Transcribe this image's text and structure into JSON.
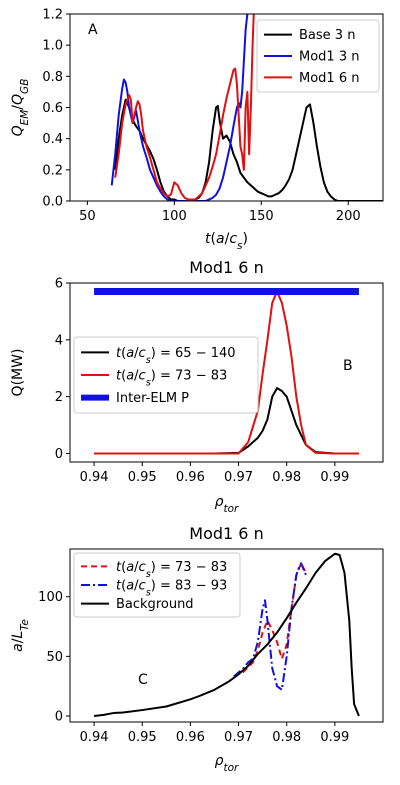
{
  "chart_data": [
    {
      "id": "A",
      "type": "line",
      "title": "",
      "panel_label": "A",
      "xlabel": "t(a/c_s)",
      "ylabel": "Q_EM/Q_GB",
      "xlim": [
        40,
        220
      ],
      "ylim": [
        0,
        1.2
      ],
      "xticks": [
        50,
        100,
        150,
        200
      ],
      "yticks": [
        0.0,
        0.2,
        0.4,
        0.6,
        0.8,
        1.0,
        1.2
      ],
      "xtick_labels": [
        "50",
        "100",
        "150",
        "200"
      ],
      "ytick_labels": [
        "0.0",
        "0.2",
        "0.4",
        "0.6",
        "0.8",
        "1.0",
        "1.2"
      ],
      "legend_position": "top-right",
      "series": [
        {
          "name": "Base 3 n",
          "color": "#000000",
          "style": "solid",
          "x": [
            66,
            68,
            70,
            72,
            74,
            76,
            78,
            80,
            82,
            84,
            86,
            88,
            90,
            92,
            94,
            96,
            98,
            100,
            102,
            104,
            106,
            108,
            110,
            112,
            114,
            116,
            118,
            120,
            122,
            124,
            125,
            126,
            128,
            130,
            132,
            134,
            136,
            138,
            140,
            142,
            144,
            146,
            148,
            150,
            152,
            154,
            156,
            158,
            160,
            162,
            164,
            166,
            168,
            170,
            172,
            174,
            176,
            178,
            180,
            182,
            184,
            186,
            188,
            190,
            192,
            194,
            196,
            198,
            200,
            205,
            210,
            220
          ],
          "y": [
            0.2,
            0.4,
            0.55,
            0.65,
            0.6,
            0.52,
            0.48,
            0.45,
            0.4,
            0.36,
            0.32,
            0.27,
            0.2,
            0.12,
            0.06,
            0.03,
            0.01,
            0.01,
            0.0,
            0.0,
            0.0,
            0.0,
            0.01,
            0.01,
            0.02,
            0.05,
            0.12,
            0.25,
            0.45,
            0.6,
            0.61,
            0.52,
            0.4,
            0.42,
            0.38,
            0.3,
            0.25,
            0.18,
            0.15,
            0.12,
            0.1,
            0.08,
            0.06,
            0.05,
            0.04,
            0.03,
            0.03,
            0.04,
            0.05,
            0.07,
            0.1,
            0.14,
            0.2,
            0.3,
            0.4,
            0.5,
            0.6,
            0.62,
            0.5,
            0.35,
            0.22,
            0.12,
            0.06,
            0.03,
            0.01,
            0.0,
            0.0,
            0.0,
            0.0,
            0.0,
            0.0,
            0.0
          ]
        },
        {
          "name": "Mod1 3 n",
          "color": "#1010e0",
          "style": "solid",
          "x": [
            64,
            66,
            68,
            70,
            71,
            72,
            73,
            74,
            75,
            76,
            78,
            80,
            82,
            84,
            86,
            88,
            90,
            92,
            94,
            96,
            98,
            100,
            110,
            114,
            118,
            120,
            122,
            124,
            126,
            128,
            130,
            132,
            134,
            136,
            137,
            138,
            139,
            140,
            141,
            142,
            143
          ],
          "y": [
            0.1,
            0.3,
            0.55,
            0.72,
            0.78,
            0.76,
            0.7,
            0.6,
            0.55,
            0.5,
            0.58,
            0.45,
            0.35,
            0.28,
            0.2,
            0.15,
            0.1,
            0.06,
            0.03,
            0.01,
            0.0,
            0.0,
            0.0,
            0.0,
            0.0,
            0.01,
            0.02,
            0.04,
            0.08,
            0.15,
            0.25,
            0.35,
            0.48,
            0.6,
            0.63,
            0.6,
            0.7,
            0.9,
            1.1,
            1.2,
            1.3
          ]
        },
        {
          "name": "Mod1 6 n",
          "color": "#e01010",
          "style": "solid",
          "x": [
            66,
            68,
            70,
            72,
            74,
            75,
            76,
            77,
            78,
            79,
            80,
            81,
            82,
            84,
            86,
            88,
            90,
            92,
            94,
            96,
            98,
            100,
            102,
            104,
            106,
            108,
            110,
            112,
            114,
            116,
            118,
            120,
            122,
            124,
            126,
            128,
            130,
            132,
            134,
            135,
            136,
            137,
            138,
            139,
            140,
            141,
            142,
            143,
            144,
            145,
            146
          ],
          "y": [
            0.15,
            0.3,
            0.5,
            0.62,
            0.68,
            0.65,
            0.5,
            0.55,
            0.6,
            0.64,
            0.62,
            0.55,
            0.45,
            0.35,
            0.28,
            0.2,
            0.12,
            0.08,
            0.05,
            0.03,
            0.04,
            0.12,
            0.1,
            0.05,
            0.02,
            0.01,
            0.01,
            0.01,
            0.03,
            0.05,
            0.1,
            0.15,
            0.22,
            0.3,
            0.42,
            0.55,
            0.66,
            0.75,
            0.84,
            0.85,
            0.75,
            0.55,
            0.35,
            0.3,
            0.2,
            0.6,
            0.7,
            0.3,
            0.6,
            1.0,
            1.3
          ]
        }
      ]
    },
    {
      "id": "B",
      "type": "line",
      "title": "Mod1 6 n",
      "panel_label": "B",
      "xlabel": "ρ_tor",
      "ylabel": "Q(MW)",
      "xlim": [
        0.935,
        1.0
      ],
      "ylim": [
        -0.3,
        6.0
      ],
      "xticks": [
        0.94,
        0.95,
        0.96,
        0.97,
        0.98,
        0.99
      ],
      "yticks": [
        0,
        2,
        4,
        6
      ],
      "xtick_labels": [
        "0.94",
        "0.95",
        "0.96",
        "0.97",
        "0.98",
        "0.99"
      ],
      "ytick_labels": [
        "0",
        "2",
        "4",
        "6"
      ],
      "legend_position": "center-left",
      "series": [
        {
          "name": "t(a/c_s) = 65 − 140",
          "color": "#000000",
          "style": "solid",
          "x": [
            0.94,
            0.965,
            0.97,
            0.972,
            0.974,
            0.975,
            0.976,
            0.977,
            0.978,
            0.979,
            0.98,
            0.981,
            0.982,
            0.984,
            0.986,
            0.99,
            0.995
          ],
          "y": [
            0,
            0,
            0.02,
            0.25,
            0.55,
            0.8,
            1.2,
            2.0,
            2.3,
            2.2,
            2.0,
            1.5,
            1.0,
            0.3,
            0.05,
            0,
            0
          ],
          "linewidth": 2
        },
        {
          "name": "t(a/c_s) = 73 − 83",
          "color": "#e01010",
          "style": "solid",
          "x": [
            0.94,
            0.965,
            0.97,
            0.972,
            0.974,
            0.975,
            0.976,
            0.977,
            0.978,
            0.979,
            0.98,
            0.981,
            0.982,
            0.983,
            0.984,
            0.986,
            0.99,
            0.995
          ],
          "y": [
            0,
            0,
            0.0,
            0.4,
            1.5,
            2.8,
            4.0,
            5.3,
            5.7,
            5.3,
            4.5,
            3.4,
            2.0,
            1.0,
            0.3,
            0.02,
            0,
            0
          ],
          "linewidth": 2
        },
        {
          "name": "Inter-ELM P",
          "color": "#1010e0",
          "style": "solid",
          "x": [
            0.94,
            0.995
          ],
          "y": [
            5.7,
            5.7
          ],
          "linewidth": 7
        }
      ]
    },
    {
      "id": "C",
      "type": "line",
      "title": "Mod1 6 n",
      "panel_label": "C",
      "xlabel": "ρ_tor",
      "ylabel": "a/L_Te",
      "xlim": [
        0.935,
        1.0
      ],
      "ylim": [
        -5,
        140
      ],
      "xticks": [
        0.94,
        0.95,
        0.96,
        0.97,
        0.98,
        0.99
      ],
      "yticks": [
        0,
        50,
        100
      ],
      "xtick_labels": [
        "0.94",
        "0.95",
        "0.96",
        "0.97",
        "0.98",
        "0.99"
      ],
      "ytick_labels": [
        "0",
        "50",
        "100"
      ],
      "legend_position": "top-left",
      "series": [
        {
          "name": "t(a/c_s) = 73 − 83",
          "color": "#e01010",
          "style": "dashed",
          "x": [
            0.969,
            0.971,
            0.973,
            0.974,
            0.975,
            0.976,
            0.977,
            0.978,
            0.979,
            0.98,
            0.981,
            0.982,
            0.983,
            0.984
          ],
          "y": [
            33,
            37,
            45,
            55,
            70,
            80,
            72,
            62,
            48,
            60,
            90,
            118,
            128,
            120
          ],
          "linewidth": 2
        },
        {
          "name": "t(a/c_s) = 83 − 93",
          "color": "#1010e0",
          "style": "dashdot",
          "x": [
            0.969,
            0.971,
            0.972,
            0.973,
            0.974,
            0.975,
            0.9755,
            0.976,
            0.977,
            0.978,
            0.979,
            0.98,
            0.981,
            0.982,
            0.9825,
            0.983,
            0.984
          ],
          "y": [
            33,
            40,
            45,
            48,
            62,
            90,
            97,
            80,
            40,
            25,
            22,
            50,
            90,
            118,
            124,
            128,
            118
          ],
          "linewidth": 2
        },
        {
          "name": "Background",
          "color": "#000000",
          "style": "solid",
          "x": [
            0.94,
            0.942,
            0.944,
            0.946,
            0.95,
            0.955,
            0.96,
            0.962,
            0.965,
            0.968,
            0.97,
            0.972,
            0.974,
            0.976,
            0.978,
            0.98,
            0.982,
            0.984,
            0.986,
            0.988,
            0.99,
            0.991,
            0.992,
            0.993,
            0.9935,
            0.994,
            0.995
          ],
          "y": [
            0,
            1,
            2.5,
            3,
            5,
            8,
            14,
            17,
            22,
            29,
            35,
            42,
            52,
            60,
            70,
            82,
            95,
            107,
            120,
            130,
            136,
            135,
            120,
            80,
            40,
            10,
            0
          ],
          "linewidth": 2
        }
      ]
    }
  ]
}
